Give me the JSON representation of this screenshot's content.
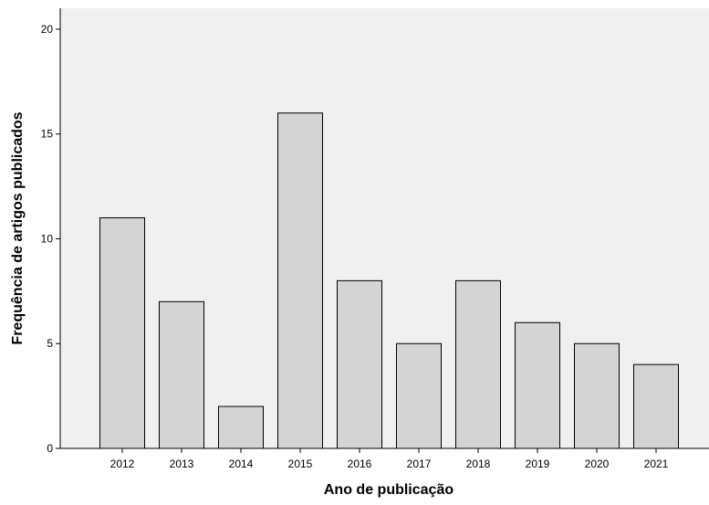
{
  "chart_data": {
    "type": "bar",
    "categories": [
      "2012",
      "2013",
      "2014",
      "2015",
      "2016",
      "2017",
      "2018",
      "2019",
      "2020",
      "2021"
    ],
    "values": [
      11,
      7,
      2,
      16,
      8,
      5,
      8,
      6,
      5,
      4
    ],
    "xlabel": "Ano de publicação",
    "ylabel": "Frequência de artigos publicados",
    "ylim": [
      0,
      21
    ],
    "yticks": [
      "0",
      "5",
      "10",
      "15",
      "20"
    ],
    "grid": false,
    "legend": "none",
    "colors": {
      "bar_fill": "#d4d4d4",
      "bar_stroke": "#000000",
      "plot_background": "#f0f0f0"
    }
  }
}
